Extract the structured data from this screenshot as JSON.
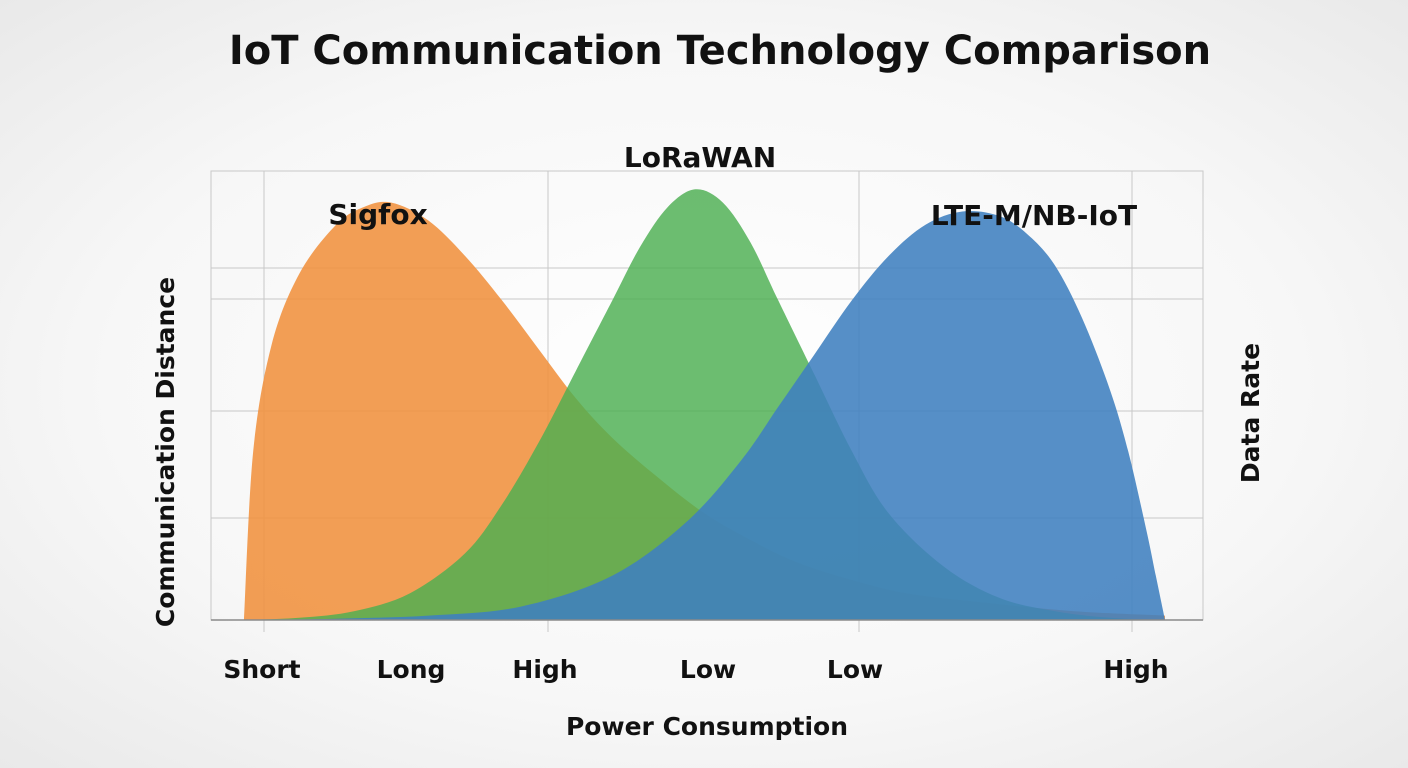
{
  "chart_data": {
    "type": "area",
    "title": "IoT Communication Technology Comparison",
    "xlabel": "Power Consumption",
    "ylabel_left": "Communication Distance",
    "ylabel_right": "Data Rate",
    "tick_labels": [
      "Short",
      "Long",
      "High",
      "Low",
      "Low",
      "High"
    ],
    "grid": true,
    "xlim": [
      0,
      100
    ],
    "ylim": [
      0,
      100
    ],
    "series": [
      {
        "name": "Sigfox",
        "color": "#f0913d",
        "opacity": 0.88,
        "x": [
          0,
          1,
          3,
          6,
          10,
          13,
          16,
          20,
          24,
          28,
          32,
          36,
          40,
          45,
          50,
          55,
          60,
          66,
          72,
          80,
          90,
          100
        ],
        "values": [
          0,
          38,
          62,
          78,
          89,
          93,
          94,
          90,
          82,
          72,
          61,
          50,
          41,
          32,
          24,
          18,
          13,
          9,
          6,
          4,
          2,
          1
        ]
      },
      {
        "name": "LoRaWAN",
        "color": "#4caf50",
        "opacity": 0.82,
        "x": [
          0,
          6,
          12,
          18,
          24,
          28,
          32,
          36,
          40,
          43,
          46,
          49,
          52,
          55,
          58,
          62,
          66,
          70,
          76,
          82,
          88,
          94,
          100
        ],
        "values": [
          0,
          0.5,
          2,
          6,
          15,
          26,
          40,
          56,
          72,
          84,
          93,
          97,
          94,
          85,
          72,
          55,
          38,
          24,
          12,
          5,
          2,
          0.5,
          0
        ]
      },
      {
        "name": "LTE-M/NB-IoT",
        "color": "#3f7fbf",
        "opacity": 0.88,
        "x": [
          0,
          10,
          20,
          30,
          40,
          48,
          54,
          58,
          62,
          66,
          70,
          74,
          78,
          82,
          85,
          88,
          91,
          94,
          96,
          98,
          99,
          100
        ],
        "values": [
          0,
          0.3,
          1,
          3,
          10,
          22,
          36,
          48,
          60,
          72,
          82,
          89,
          92,
          91,
          87,
          80,
          68,
          52,
          38,
          20,
          10,
          0
        ]
      }
    ]
  }
}
